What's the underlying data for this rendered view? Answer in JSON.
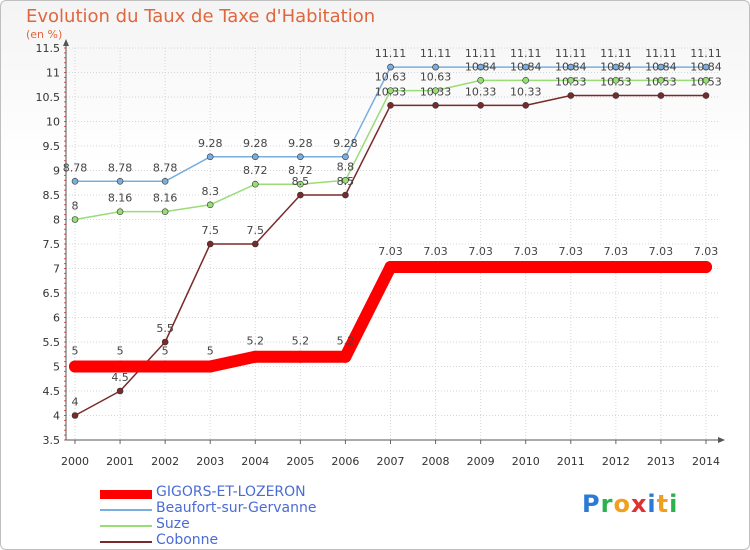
{
  "title": "Evolution du Taux de Taxe d'Habitation",
  "unit": "(en %)",
  "logo": {
    "text": "Proxiti",
    "colors": [
      "#2b7bd4",
      "#2bb24c",
      "#f0a020",
      "#e03030",
      "#2b7bd4",
      "#f0a020",
      "#2bb24c"
    ]
  },
  "chart_data": {
    "type": "line",
    "title": "Evolution du Taux de Taxe d'Habitation",
    "ylabel": "(en %)",
    "xlabel": "",
    "x": [
      "2000",
      "2001",
      "2002",
      "2003",
      "2004",
      "2005",
      "2006",
      "2007",
      "2008",
      "2009",
      "2010",
      "2011",
      "2012",
      "2013",
      "2014"
    ],
    "ylim": [
      3.5,
      11.5
    ],
    "yticks": [
      "3.5",
      "4",
      "4.5",
      "5",
      "5.5",
      "6",
      "6.5",
      "7",
      "7.5",
      "8",
      "8.5",
      "9",
      "9.5",
      "10",
      "10.5",
      "11",
      "11.5"
    ],
    "grid": true,
    "legend_position": "bottom",
    "series": [
      {
        "name": "GIGORS-ET-LOZERON",
        "color": "#ff0000",
        "values": [
          5,
          5,
          5,
          5,
          5.2,
          5.2,
          5.2,
          7.03,
          7.03,
          7.03,
          7.03,
          7.03,
          7.03,
          7.03,
          7.03
        ],
        "labels": [
          "5",
          "5",
          "5",
          "5",
          "5.2",
          "5.2",
          "5.2",
          "7.03",
          "7.03",
          "7.03",
          "7.03",
          "7.03",
          "7.03",
          "7.03",
          "7.03"
        ]
      },
      {
        "name": "Beaufort-sur-Gervanne",
        "color": "#7aaede",
        "values": [
          8.78,
          8.78,
          8.78,
          9.28,
          9.28,
          9.28,
          9.28,
          11.11,
          11.11,
          11.11,
          11.11,
          11.11,
          11.11,
          11.11,
          11.11
        ],
        "labels": [
          "8.78",
          "8.78",
          "8.78",
          "9.28",
          "9.28",
          "9.28",
          "9.28",
          "11.11",
          "11.11",
          "11.11",
          "11.11",
          "11.11",
          "11.11",
          "11.11",
          "11.11"
        ]
      },
      {
        "name": "Suze",
        "color": "#99dd77",
        "values": [
          8,
          8.16,
          8.16,
          8.3,
          8.72,
          8.72,
          8.8,
          10.63,
          10.63,
          10.84,
          10.84,
          10.84,
          10.84,
          10.84,
          10.84
        ],
        "labels": [
          "8",
          "8.16",
          "8.16",
          "8.3",
          "8.72",
          "8.72",
          "8.8",
          "10.63",
          "10.63",
          "10.84",
          "10.84",
          "10.84",
          "10.84",
          "10.84",
          "10.84"
        ]
      },
      {
        "name": "Cobonne",
        "color": "#7a2a2a",
        "values": [
          4,
          4.5,
          5.5,
          7.5,
          7.5,
          8.5,
          8.5,
          10.33,
          10.33,
          10.33,
          10.33,
          10.53,
          10.53,
          10.53,
          10.53
        ],
        "labels": [
          "4",
          "4.5",
          "5.5",
          "7.5",
          "7.5",
          "8.5",
          "8.5",
          "10.33",
          "10.33",
          "10.33",
          "10.33",
          "10.53",
          "10.53",
          "10.53",
          "10.53"
        ]
      }
    ]
  }
}
